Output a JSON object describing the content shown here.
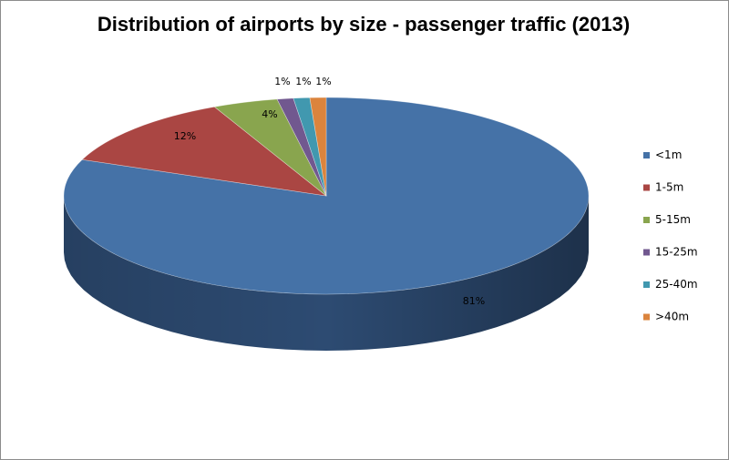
{
  "chart_data": {
    "type": "pie",
    "title": "Distribution of airports by size - passenger traffic (2013)",
    "categories": [
      "<1m",
      "1-5m",
      "5-15m",
      "15-25m",
      "25-40m",
      ">40m"
    ],
    "values": [
      81,
      12,
      4,
      1,
      1,
      1
    ],
    "labels": [
      "81%",
      "12%",
      "4%",
      "1%",
      "1%",
      "1%"
    ],
    "colors": [
      "#4572A7",
      "#AA4643",
      "#89A54E",
      "#71588F",
      "#4198AF",
      "#DB843D"
    ],
    "side_colors": [
      "#2D4B72",
      "#6E2B29",
      "#587032",
      "#4A395D",
      "#2A6372",
      "#8E5527"
    ],
    "legend_position": "right",
    "style": "3d"
  }
}
